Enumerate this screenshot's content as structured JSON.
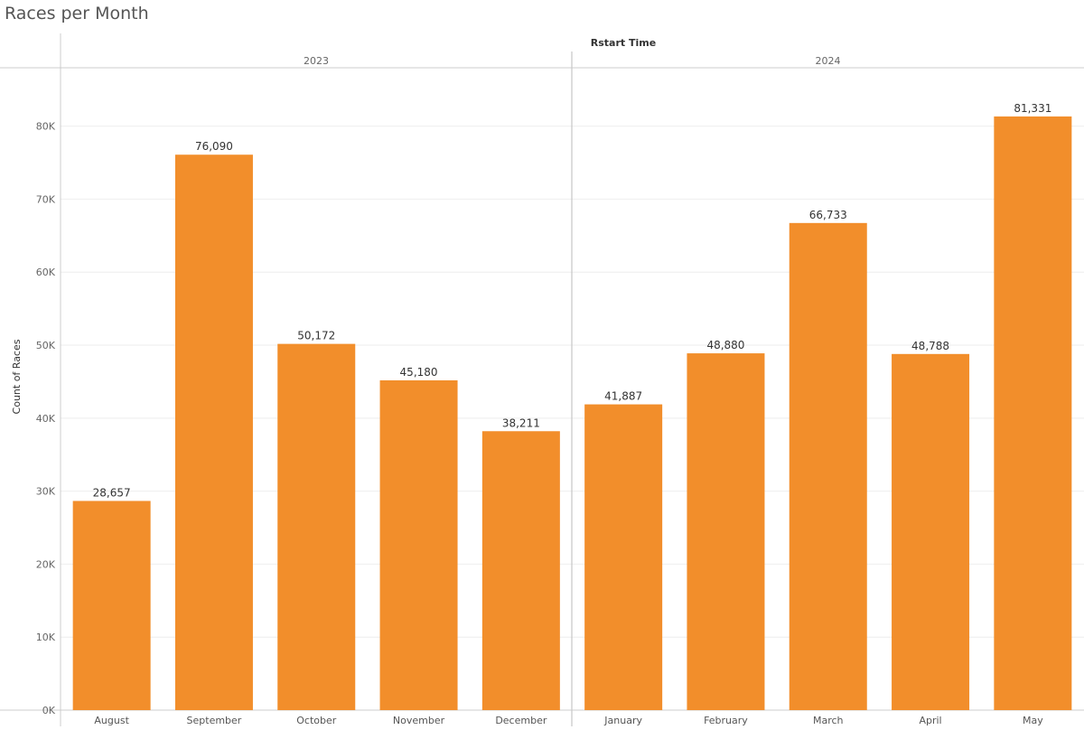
{
  "chart_data": {
    "type": "bar",
    "title": "Races per Month",
    "header_label": "Rstart Time",
    "ylabel": "Count of Races",
    "ylim": [
      0,
      88000
    ],
    "y_ticks": [
      {
        "value": 0,
        "label": "0K"
      },
      {
        "value": 10000,
        "label": "10K"
      },
      {
        "value": 20000,
        "label": "20K"
      },
      {
        "value": 30000,
        "label": "30K"
      },
      {
        "value": 40000,
        "label": "40K"
      },
      {
        "value": 50000,
        "label": "50K"
      },
      {
        "value": 60000,
        "label": "60K"
      },
      {
        "value": 70000,
        "label": "70K"
      },
      {
        "value": 80000,
        "label": "80K"
      }
    ],
    "gridlines": true,
    "bar_color": "#f28e2b",
    "groups": [
      {
        "label": "2023",
        "categories": [
          "August",
          "September",
          "October",
          "November",
          "December"
        ],
        "values": [
          28657,
          76090,
          50172,
          45180,
          38211
        ],
        "value_labels": [
          "28,657",
          "76,090",
          "50,172",
          "45,180",
          "38,211"
        ]
      },
      {
        "label": "2024",
        "categories": [
          "January",
          "February",
          "March",
          "April",
          "May"
        ],
        "values": [
          41887,
          48880,
          66733,
          48788,
          81331
        ],
        "value_labels": [
          "41,887",
          "48,880",
          "66,733",
          "48,788",
          "81,331"
        ]
      }
    ]
  }
}
